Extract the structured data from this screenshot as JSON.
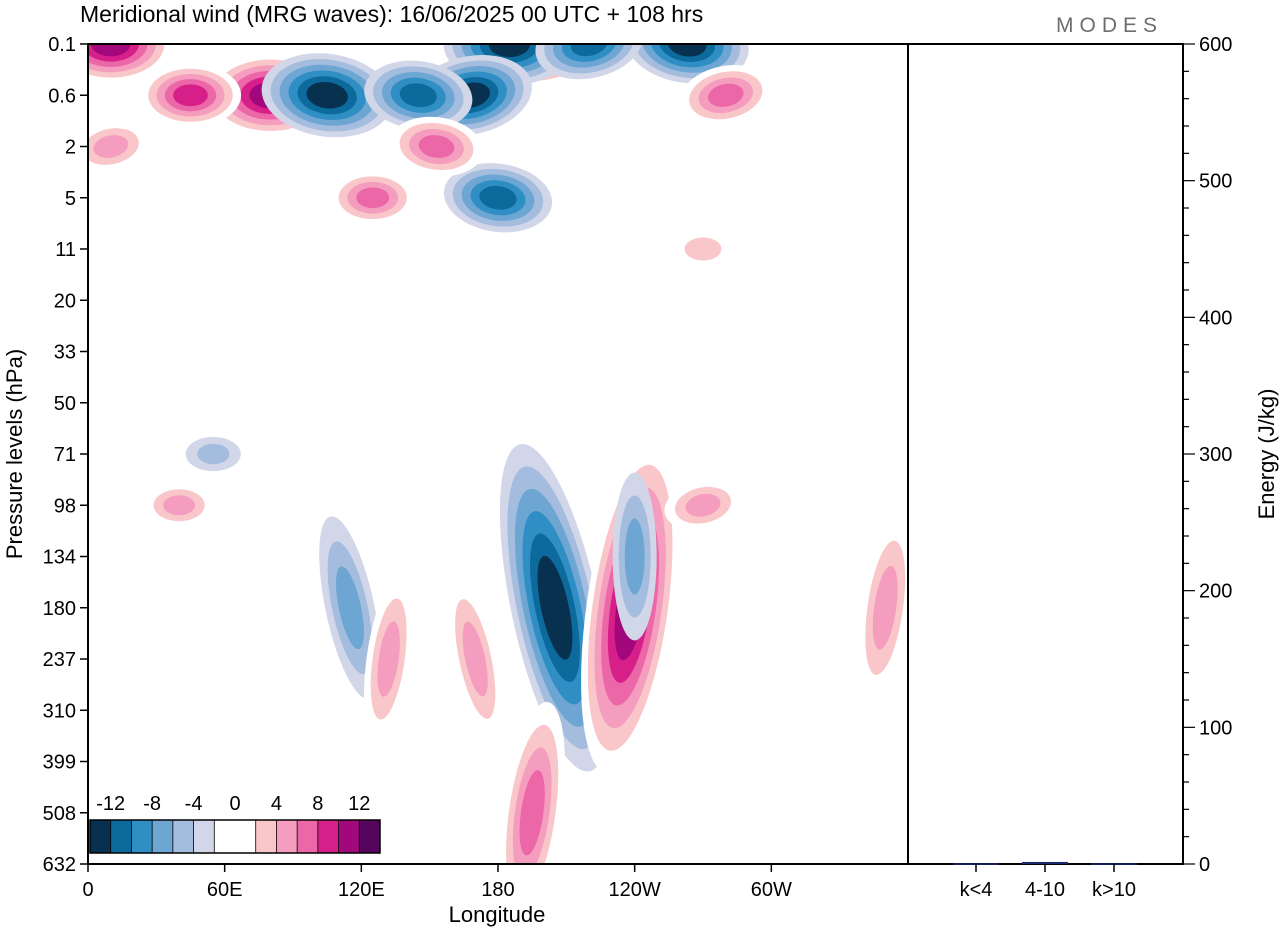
{
  "chart_data": [
    {
      "type": "heatmap",
      "title": "Meridional wind (MRG waves):  16/06/2025  00 UTC  + 108 hrs",
      "xlabel": "Longitude",
      "ylabel": "Pressure levels (hPa)",
      "x_ticks": [
        "0",
        "60E",
        "120E",
        "180",
        "120W",
        "60W"
      ],
      "x_tick_values": [
        0,
        60,
        120,
        180,
        240,
        300
      ],
      "xlim": [
        0,
        360
      ],
      "y_ticks": [
        "0.1",
        "0.6",
        "2",
        "5",
        "11",
        "20",
        "33",
        "50",
        "71",
        "98",
        "134",
        "180",
        "237",
        "310",
        "399",
        "508",
        "632"
      ],
      "y_scale": "categorical pressure levels, top to bottom",
      "colorbar": {
        "ticks": [
          "-12",
          "-8",
          "-4",
          "0",
          "4",
          "8",
          "12"
        ],
        "colors": [
          "#08304f",
          "#0d6a9c",
          "#2f8fc4",
          "#6ea6d3",
          "#a4bddf",
          "#d2d6e9",
          "#ffffff",
          "#ffffff",
          "#f9c7c9",
          "#f59dbe",
          "#ec67a8",
          "#d71f8a",
          "#a2077b",
          "#55045e"
        ]
      },
      "features": [
        {
          "sign": "negative",
          "lon": 205,
          "level": "180",
          "magnitude": 14
        },
        {
          "sign": "positive",
          "lon": 238,
          "level": "180",
          "magnitude": 14
        },
        {
          "sign": "positive",
          "lon": 80,
          "level": "0.6",
          "magnitude": 13
        },
        {
          "sign": "positive",
          "lon": 200,
          "level": "0.1",
          "magnitude": 13
        },
        {
          "sign": "negative",
          "lon": 105,
          "level": "0.6",
          "magnitude": 13
        },
        {
          "sign": "negative",
          "lon": 185,
          "level": "0.1",
          "magnitude": 13
        },
        {
          "sign": "negative",
          "lon": 168,
          "level": "0.6",
          "magnitude": 12
        },
        {
          "sign": "negative",
          "lon": 263,
          "level": "0.1",
          "magnitude": 12
        },
        {
          "sign": "positive",
          "lon": 10,
          "level": "0.1",
          "magnitude": 12
        },
        {
          "sign": "negative",
          "lon": 220,
          "level": "0.1",
          "magnitude": 10
        },
        {
          "sign": "negative",
          "lon": 145,
          "level": "0.6",
          "magnitude": 10
        },
        {
          "sign": "positive",
          "lon": 45,
          "level": "0.6",
          "magnitude": 9
        },
        {
          "sign": "positive",
          "lon": 280,
          "level": "0.6",
          "magnitude": 8
        },
        {
          "sign": "negative",
          "lon": 180,
          "level": "5",
          "magnitude": 10
        },
        {
          "sign": "positive",
          "lon": 125,
          "level": "5",
          "magnitude": 7
        },
        {
          "sign": "positive",
          "lon": 10,
          "level": "2",
          "magnitude": 6
        },
        {
          "sign": "positive",
          "lon": 153,
          "level": "2",
          "magnitude": 8
        },
        {
          "sign": "positive",
          "lon": 270,
          "level": "11",
          "magnitude": 4
        },
        {
          "sign": "negative",
          "lon": 115,
          "level": "180",
          "magnitude": 6
        },
        {
          "sign": "positive",
          "lon": 132,
          "level": "237",
          "magnitude": 5
        },
        {
          "sign": "positive",
          "lon": 40,
          "level": "98",
          "magnitude": 5
        },
        {
          "sign": "positive",
          "lon": 170,
          "level": "237",
          "magnitude": 5
        },
        {
          "sign": "positive",
          "lon": 195,
          "level": "508",
          "magnitude": 8
        },
        {
          "sign": "negative",
          "lon": 240,
          "level": "134",
          "magnitude": 5
        },
        {
          "sign": "positive",
          "lon": 270,
          "level": "98",
          "magnitude": 6
        },
        {
          "sign": "positive",
          "lon": 350,
          "level": "180",
          "magnitude": 6
        },
        {
          "sign": "negative",
          "lon": 55,
          "level": "71",
          "magnitude": 3
        }
      ]
    },
    {
      "type": "bar",
      "ylabel": "Energy (J/kg)",
      "categories": [
        "k<4",
        "4-10",
        "k>10"
      ],
      "values": [
        0.5,
        1.5,
        0.5
      ],
      "ylim": [
        0,
        600
      ],
      "y_ticks": [
        "0",
        "100",
        "200",
        "300",
        "400",
        "500",
        "600"
      ],
      "bar_color": "#1c2a6b"
    }
  ],
  "branding": {
    "logo_text": "MODES"
  }
}
